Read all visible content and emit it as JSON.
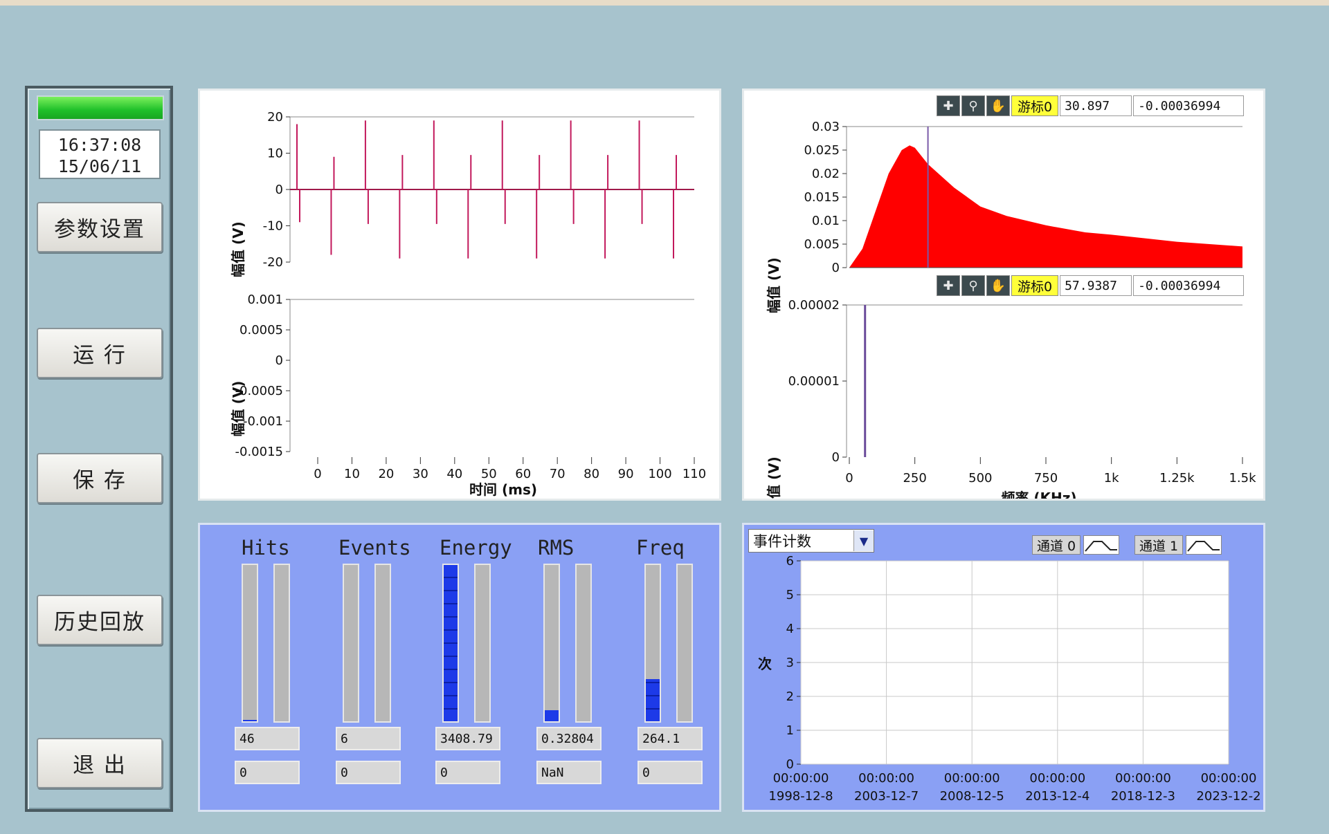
{
  "clock": {
    "time": "16:37:08",
    "date": "15/06/11"
  },
  "buttons": {
    "settings": "参数设置",
    "run": "运 行",
    "save": "保 存",
    "history": "历史回放",
    "exit": "退 出"
  },
  "waveform_chart": {
    "ylabel_top": "幅值 (V)",
    "ylabel_bottom": "幅值 (V)",
    "xlabel": "时间 (ms)",
    "top_yticks": [
      "20",
      "10",
      "0",
      "-10",
      "-20"
    ],
    "bottom_yticks": [
      "0.001",
      "0.0005",
      "0",
      "-0.0005",
      "-0.001",
      "-0.0015"
    ],
    "xticks": [
      "0",
      "10",
      "20",
      "30",
      "40",
      "50",
      "60",
      "70",
      "80",
      "90",
      "100",
      "110"
    ]
  },
  "spectrum_chart": {
    "ylabel_top": "幅值 (V)",
    "ylabel_bottom": "幅值 (V)",
    "xlabel": "频率 (KHz)",
    "top_yticks": [
      "0.03",
      "0.025",
      "0.02",
      "0.015",
      "0.01",
      "0.005",
      "0"
    ],
    "bottom_yticks": [
      "0.00002",
      "0.00001",
      "0"
    ],
    "xticks": [
      "0",
      "250",
      "500",
      "750",
      "1k",
      "1.25k",
      "1.5k"
    ],
    "cursor_top": {
      "name": "游标0",
      "x": "30.897",
      "y": "-0.00036994"
    },
    "cursor_bottom": {
      "name": "游标0",
      "x": "57.9387",
      "y": "-0.00036994"
    },
    "fill_color": "#ff0000"
  },
  "meters": [
    {
      "title": "Hits",
      "level_a": 0.01,
      "level_b": 0,
      "value": "46",
      "value2": "0"
    },
    {
      "title": "Events",
      "level_a": 0,
      "level_b": 0,
      "value": "6",
      "value2": "0"
    },
    {
      "title": "Energy",
      "level_a": 1.0,
      "level_b": 0,
      "value": "3408.79",
      "value2": "0"
    },
    {
      "title": "RMS",
      "level_a": 0.07,
      "level_b": 0,
      "value": "0.32804",
      "value2": "NaN"
    },
    {
      "title": "Freq",
      "level_a": 0.27,
      "level_b": 0,
      "value": "264.1",
      "value2": "0"
    }
  ],
  "event_chart": {
    "dropdown": "事件计数",
    "ylabel": "次",
    "channel0": "通道 0",
    "channel1": "通道 1",
    "yticks": [
      "6",
      "5",
      "4",
      "3",
      "2",
      "1",
      "0"
    ],
    "xticks_time": [
      "00:00:00",
      "00:00:00",
      "00:00:00",
      "00:00:00",
      "00:00:00",
      "00:00:00"
    ],
    "xticks_date": [
      "1998-12-8",
      "2003-12-7",
      "2008-12-5",
      "2013-12-4",
      "2018-12-3",
      "2023-12-2"
    ]
  },
  "chart_data": [
    {
      "type": "line",
      "title": "",
      "xlabel": "时间 (ms)",
      "ylabel": "幅值 (V)",
      "xlim": [
        0,
        110
      ],
      "ylim": [
        -20,
        20
      ],
      "x": [
        0,
        10,
        20,
        30,
        40,
        50,
        60,
        70,
        80,
        90,
        100,
        110
      ],
      "series": [
        {
          "values": [
            18,
            -18,
            19,
            -19,
            19,
            -19,
            19,
            -19,
            19,
            -19,
            19,
            -19
          ]
        }
      ]
    },
    {
      "type": "line",
      "title": "",
      "xlabel": "时间 (ms)",
      "ylabel": "幅值 (V)",
      "xlim": [
        0,
        110
      ],
      "ylim": [
        -0.0015,
        0.001
      ],
      "series": []
    },
    {
      "type": "area",
      "title": "",
      "xlabel": "频率 (KHz)",
      "ylabel": "幅值 (V)",
      "xlim": [
        0,
        1500
      ],
      "ylim": [
        0,
        0.03
      ],
      "x": [
        0,
        50,
        100,
        150,
        200,
        230,
        250,
        300,
        400,
        500,
        600,
        750,
        900,
        1000,
        1250,
        1500
      ],
      "series": [
        {
          "values": [
            0.0,
            0.004,
            0.012,
            0.02,
            0.025,
            0.026,
            0.0255,
            0.022,
            0.017,
            0.013,
            0.011,
            0.009,
            0.0075,
            0.007,
            0.0055,
            0.0045
          ]
        }
      ]
    },
    {
      "type": "line",
      "title": "",
      "xlabel": "频率 (KHz)",
      "ylabel": "幅值 (V)",
      "xlim": [
        0,
        1500
      ],
      "ylim": [
        0,
        2e-05
      ],
      "x": [
        60,
        60
      ],
      "series": [
        {
          "values": [
            0,
            2e-05
          ]
        }
      ]
    },
    {
      "type": "line",
      "title": "",
      "xlabel": "",
      "ylabel": "次",
      "ylim": [
        0,
        6
      ],
      "categories": [
        "1998-12-8",
        "2003-12-7",
        "2008-12-5",
        "2013-12-4",
        "2018-12-3",
        "2023-12-2"
      ],
      "series": []
    }
  ]
}
